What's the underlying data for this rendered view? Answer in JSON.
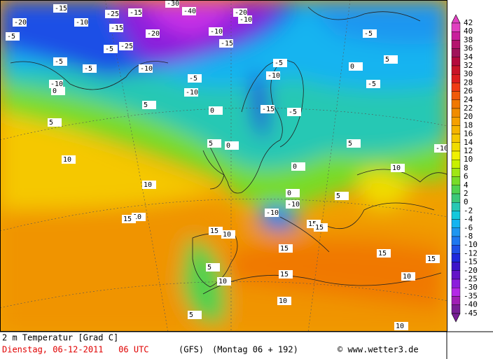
{
  "map": {
    "contour_labels": [
      -15,
      -20,
      -25,
      -10,
      -5,
      -15,
      -25,
      -20,
      -30,
      -40,
      -20,
      -10,
      -15,
      -10,
      -5,
      -5,
      -10,
      -15,
      -10,
      -5,
      -10,
      -5,
      0,
      -10,
      -5,
      -15,
      0,
      5,
      5,
      10,
      0,
      5,
      10,
      10,
      15,
      15,
      10,
      15,
      15,
      15,
      5,
      10,
      5,
      15,
      10,
      -10,
      0,
      -5,
      -5,
      10,
      15,
      -10,
      5,
      -5,
      10,
      15,
      0,
      5,
      0,
      5,
      10,
      -10
    ],
    "legend": {
      "levels": [
        42,
        40,
        38,
        36,
        34,
        32,
        30,
        28,
        26,
        24,
        22,
        20,
        18,
        16,
        14,
        12,
        10,
        8,
        6,
        4,
        2,
        0,
        -2,
        -4,
        -6,
        -8,
        -10,
        -12,
        -15,
        -20,
        -25,
        -30,
        -35,
        -40,
        -45
      ],
      "colors": [
        "#e040c0",
        "#c81e9c",
        "#b4146e",
        "#a0145a",
        "#b40a3c",
        "#c81428",
        "#dc1e1e",
        "#f03c14",
        "#f05a0a",
        "#f07800",
        "#f08c00",
        "#f5a000",
        "#f5b400",
        "#f5c800",
        "#f0dc00",
        "#f0f000",
        "#c8f000",
        "#a0e614",
        "#78dc28",
        "#50d250",
        "#3cc878",
        "#28c8b4",
        "#14c8dc",
        "#14b4f0",
        "#1e96f0",
        "#1e78f0",
        "#1e50e6",
        "#1e28dc",
        "#3c14c8",
        "#6414c8",
        "#8c1edc",
        "#b428e6",
        "#a01eb4",
        "#781e96"
      ]
    }
  },
  "footer": {
    "title": "2 m Temperatur [Grad C]",
    "date": "Dienstag, 06-12-2011   06 UTC",
    "model": "(GFS)",
    "forecast": "(Montag 06 + 192)",
    "credit": "© www.wetter3.de"
  }
}
